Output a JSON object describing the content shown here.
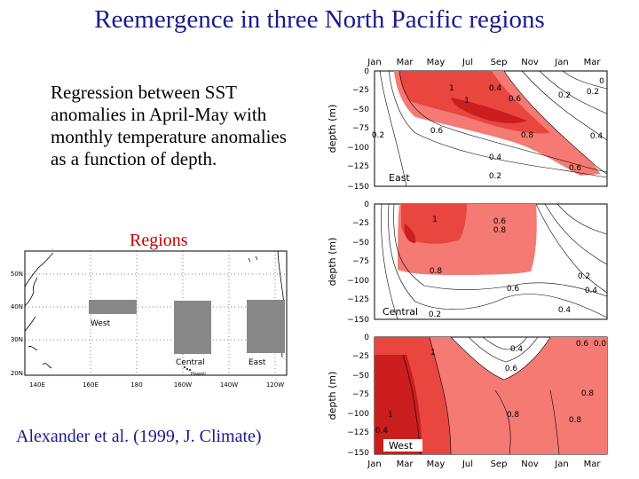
{
  "title": "Reemergence in three North Pacific regions",
  "description": "Regression between SST anomalies in April-May with monthly temperature anomalies as a function of depth.",
  "regions_label": "Regions",
  "citation": "Alexander et al. (1999, J. Climate)",
  "colors": {
    "title": "#1c1a8c",
    "regions_label": "#c00000",
    "shade_light": "#f47a73",
    "shade_mid": "#e8463f",
    "shade_dark": "#cc1e1e",
    "region_box": "#888888"
  },
  "map": {
    "lat_labels": [
      "50N",
      "40N",
      "30N",
      "20N"
    ],
    "lon_labels": [
      "140E",
      "160E",
      "180",
      "160W",
      "140W",
      "120W"
    ],
    "regions": [
      "West",
      "Central",
      "East"
    ],
    "island_label": "Hawaii"
  },
  "panels": {
    "months": [
      "Jan",
      "Mar",
      "May",
      "Jul",
      "Sep",
      "Nov",
      "Jan",
      "Mar"
    ],
    "depth_ticks": [
      "0",
      "−25",
      "−50",
      "−75",
      "−100",
      "−125",
      "−150"
    ],
    "ylabel": "depth (m)",
    "items": [
      {
        "region": "East",
        "contour_labels": [
          "1",
          "1",
          "0.4",
          "0.6",
          "0.6",
          "0.8",
          "0.4",
          "0.6",
          "0.2",
          "0.2",
          "0.2",
          "0.2",
          "0.4",
          "0"
        ]
      },
      {
        "region": "Central",
        "contour_labels": [
          "1",
          "0.6",
          "0.8",
          "0.8",
          "0.6",
          "0.2",
          "0.4",
          "0.4",
          "0.2"
        ]
      },
      {
        "region": "West",
        "contour_labels": [
          "1",
          "1",
          "0.4",
          "0.6",
          "0.8",
          "0.8",
          "0.8",
          "0.4",
          "0.6",
          "0.0"
        ]
      }
    ]
  }
}
